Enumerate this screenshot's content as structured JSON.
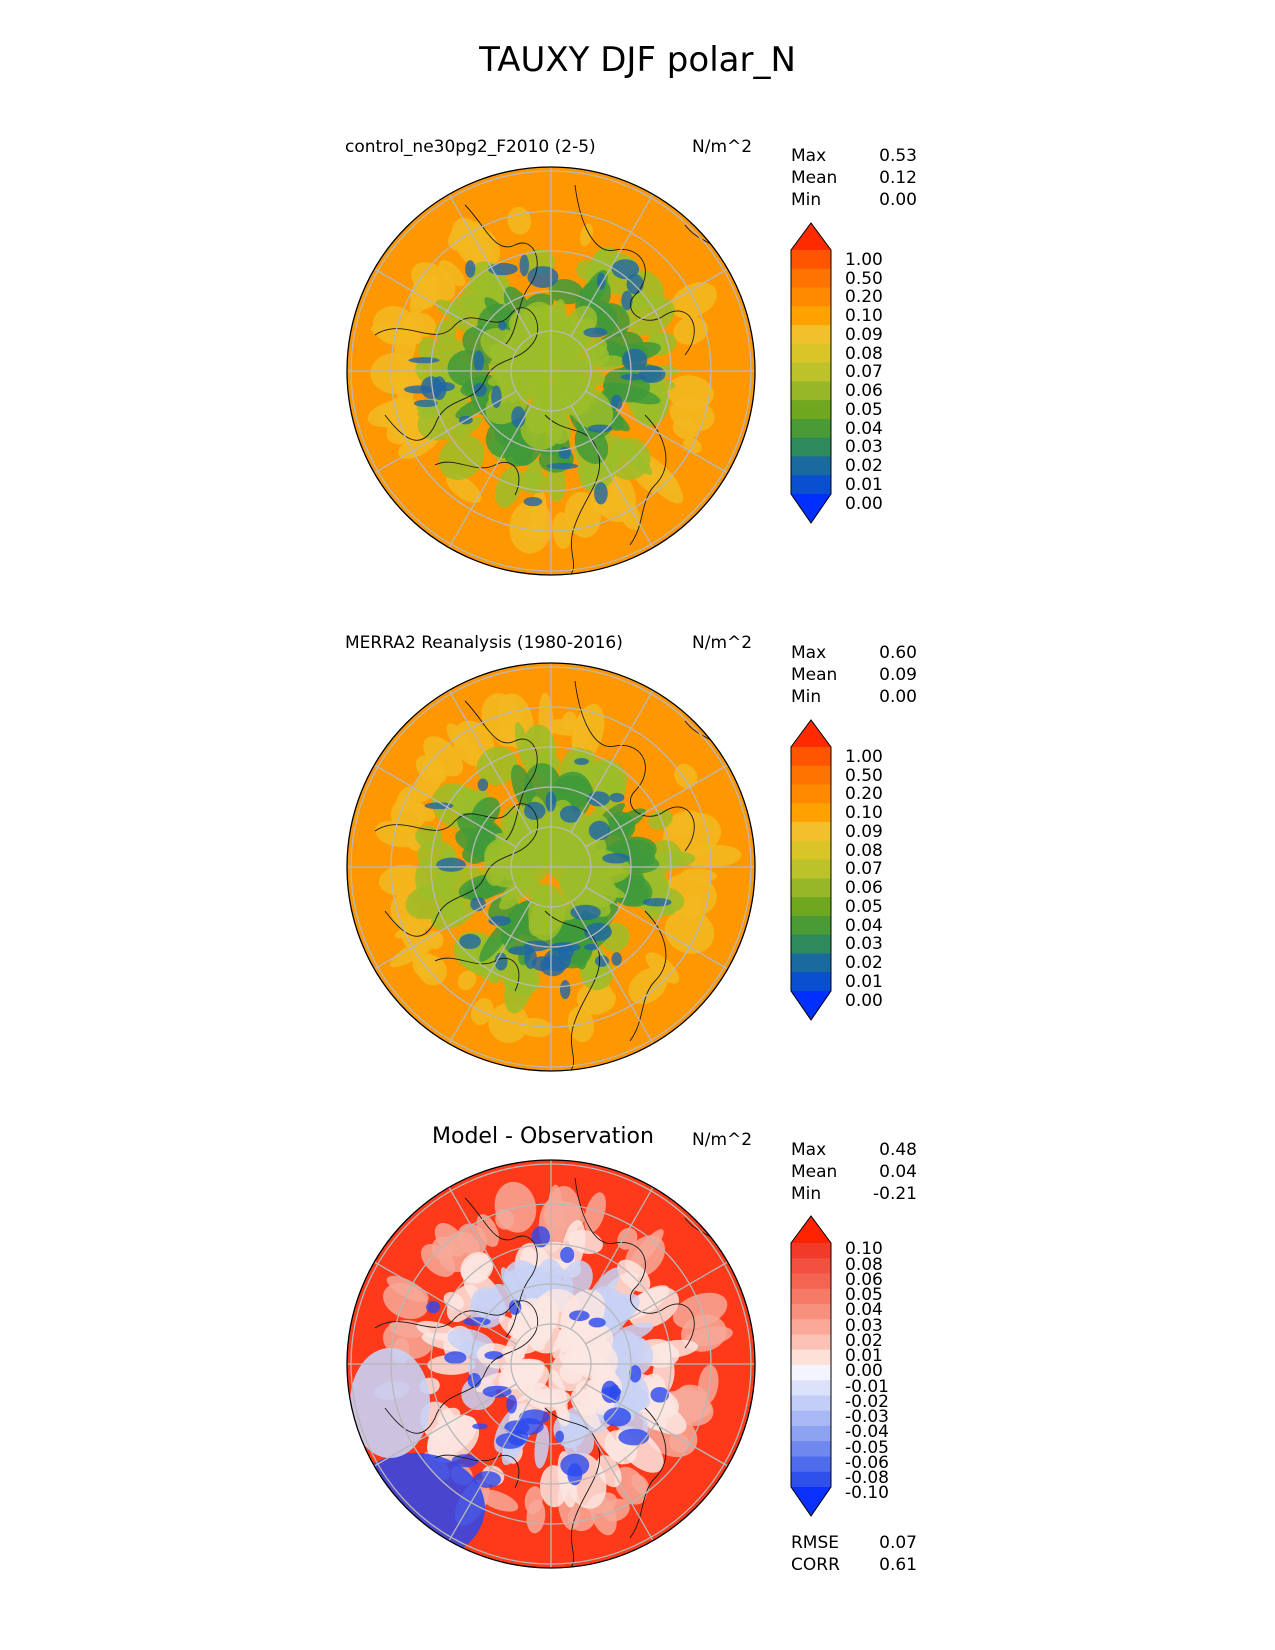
{
  "title": "TAUXY DJF polar_N",
  "panels": [
    {
      "label": "control_ne30pg2_F2010 (2-5)",
      "units": "N/m^2",
      "stats": [
        {
          "name": "Max",
          "value": "0.53"
        },
        {
          "name": "Mean",
          "value": "0.12"
        },
        {
          "name": "Min",
          "value": "0.00"
        }
      ],
      "colorbar": {
        "ticks": [
          "1.00",
          "0.50",
          "0.20",
          "0.10",
          "0.09",
          "0.08",
          "0.07",
          "0.06",
          "0.05",
          "0.04",
          "0.03",
          "0.02",
          "0.01",
          "0.00"
        ],
        "colors": [
          "#ff2a00",
          "#ff5500",
          "#ff7400",
          "#ff8a00",
          "#ffa200",
          "#f2c02b",
          "#d9c526",
          "#bcc32a",
          "#97b628",
          "#6fa81f",
          "#4a9a36",
          "#2e8a5c",
          "#1a6aa0",
          "#0a4fd0",
          "#0030ff"
        ]
      },
      "map_colors": {
        "ocean": "#ff9800",
        "mid": "#f2b820",
        "low": "#9bbd2a",
        "lower": "#3f9a3a",
        "lowest": "#1f66a8"
      }
    },
    {
      "label": "MERRA2 Reanalysis (1980-2016)",
      "units": "N/m^2",
      "stats": [
        {
          "name": "Max",
          "value": "0.60"
        },
        {
          "name": "Mean",
          "value": "0.09"
        },
        {
          "name": "Min",
          "value": "0.00"
        }
      ],
      "colorbar": {
        "ticks": [
          "1.00",
          "0.50",
          "0.20",
          "0.10",
          "0.09",
          "0.08",
          "0.07",
          "0.06",
          "0.05",
          "0.04",
          "0.03",
          "0.02",
          "0.01",
          "0.00"
        ],
        "colors": [
          "#ff2a00",
          "#ff5500",
          "#ff7400",
          "#ff8a00",
          "#ffa200",
          "#f2c02b",
          "#d9c526",
          "#bcc32a",
          "#97b628",
          "#6fa81f",
          "#4a9a36",
          "#2e8a5c",
          "#1a6aa0",
          "#0a4fd0",
          "#0030ff"
        ]
      },
      "map_colors": {
        "ocean": "#ff9800",
        "mid": "#f2b820",
        "low": "#9bbd2a",
        "lower": "#3f9a3a",
        "lowest": "#1f66a8"
      }
    },
    {
      "label": "Model - Observation",
      "units": "N/m^2",
      "stats": [
        {
          "name": "Max",
          "value": "0.48"
        },
        {
          "name": "Mean",
          "value": "0.04"
        },
        {
          "name": "Min",
          "value": "-0.21"
        }
      ],
      "colorbar": {
        "ticks": [
          "0.10",
          "0.08",
          "0.06",
          "0.05",
          "0.04",
          "0.03",
          "0.02",
          "0.01",
          "0.00",
          "-0.01",
          "-0.02",
          "-0.03",
          "-0.04",
          "-0.05",
          "-0.06",
          "-0.08",
          "-0.10"
        ],
        "colors": [
          "#ff2200",
          "#f23a2a",
          "#f25040",
          "#f46450",
          "#f67a66",
          "#f8907e",
          "#faa898",
          "#fcc2b6",
          "#fde0d8",
          "#f4f4ff",
          "#dde2fb",
          "#c2cdf8",
          "#a8b8f5",
          "#8ea2f2",
          "#6f88ef",
          "#4f6ced",
          "#2f50ea",
          "#0a30ff"
        ]
      },
      "map_colors": {
        "ocean": "#ff3a1a",
        "mid": "#f7a898",
        "low": "#fbe6e2",
        "lower": "#c8d2f6",
        "lowest": "#2a48ee"
      }
    }
  ],
  "diff_metrics": [
    {
      "name": "RMSE",
      "value": "0.07"
    },
    {
      "name": "CORR",
      "value": "0.61"
    }
  ]
}
